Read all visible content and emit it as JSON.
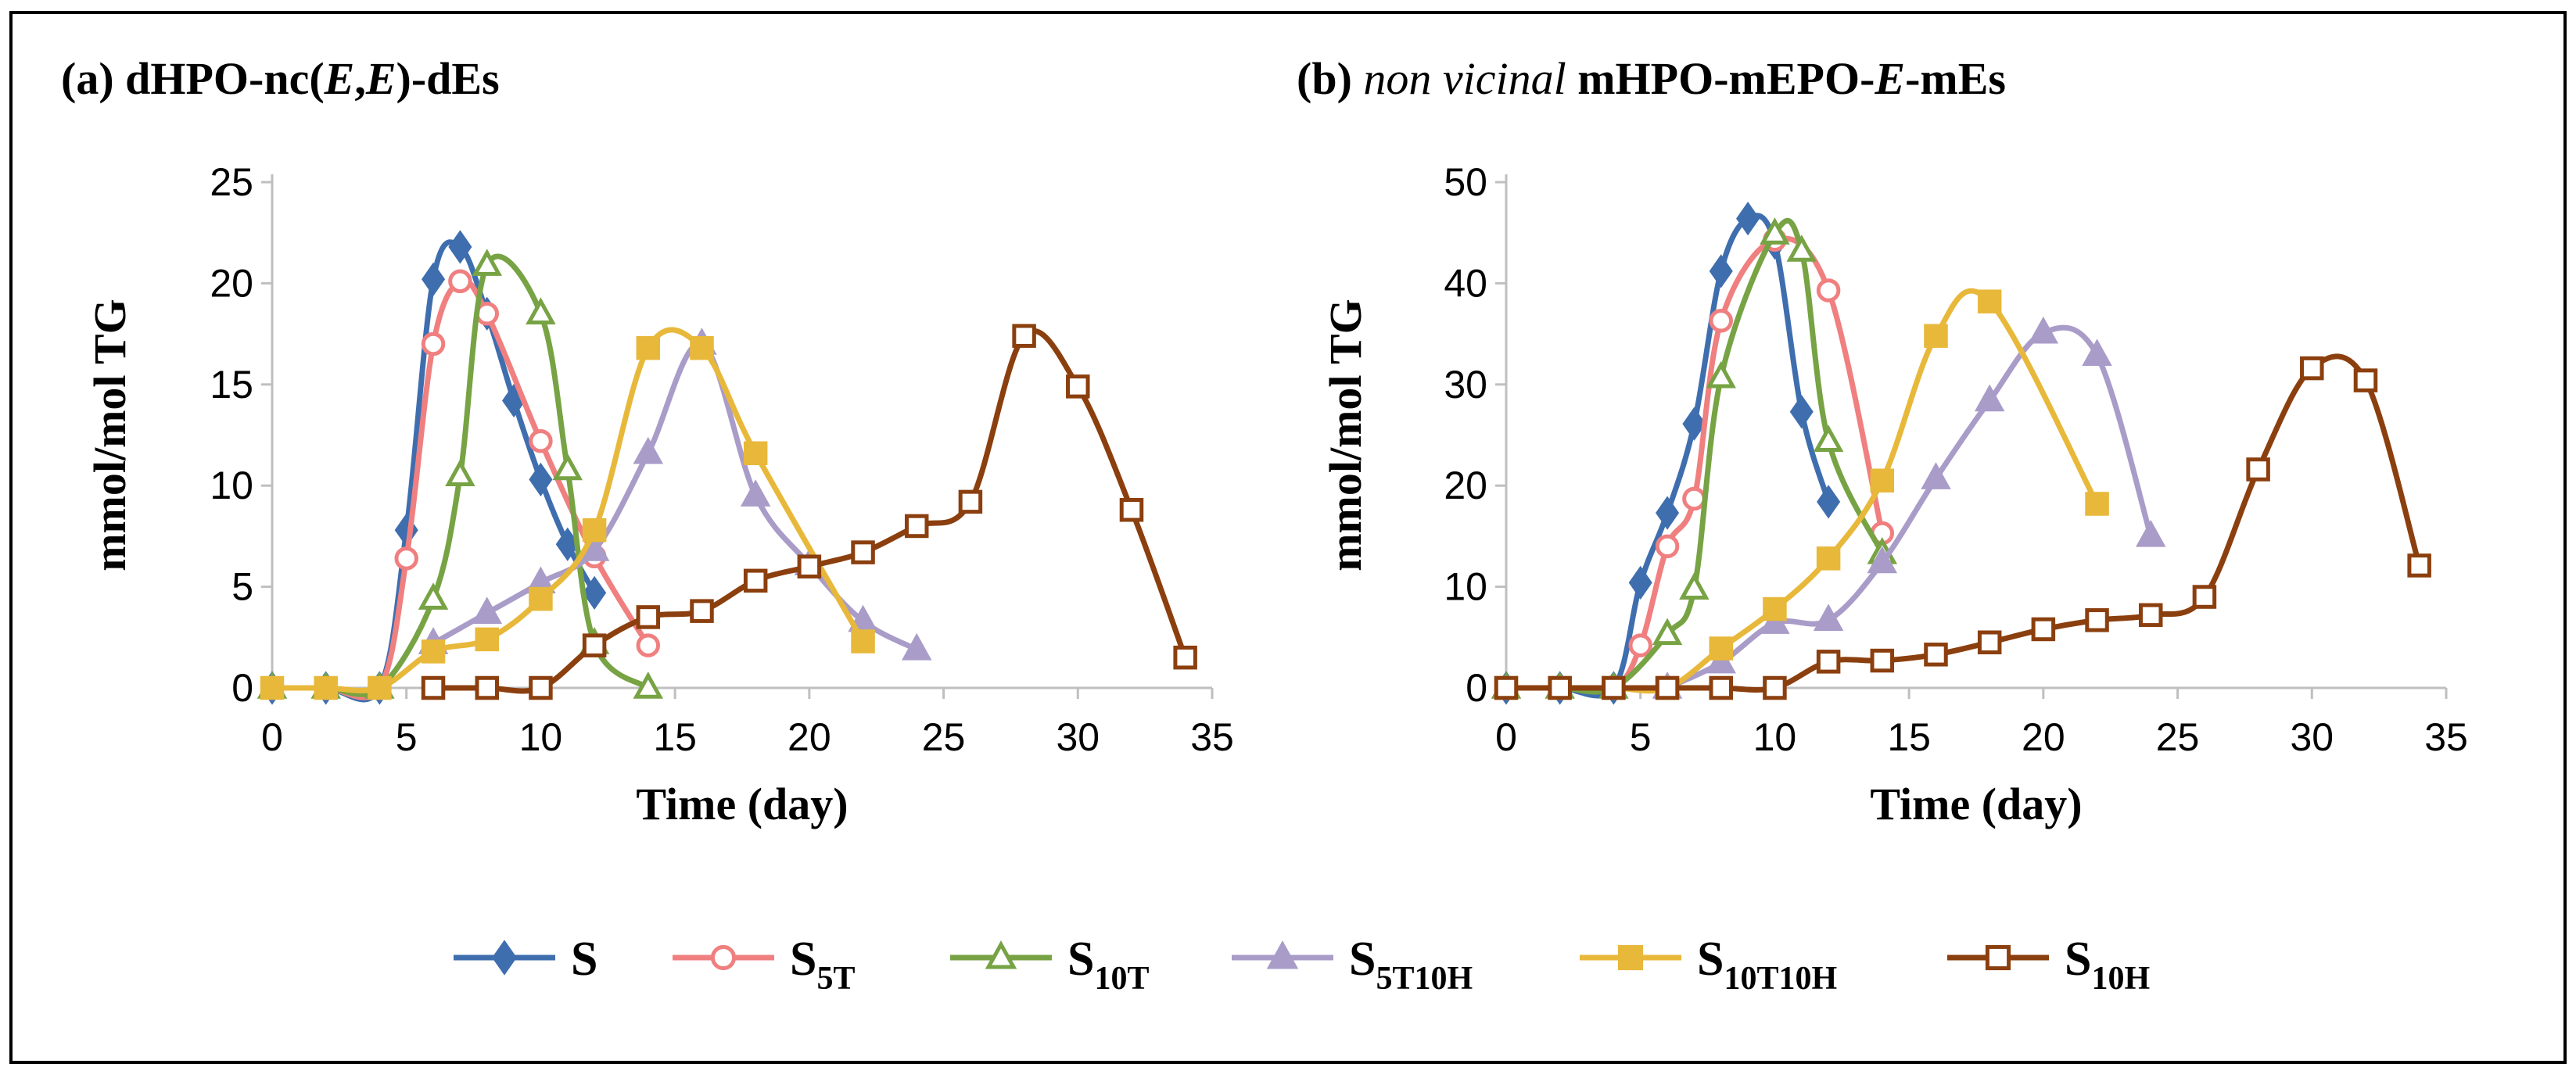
{
  "chart_data": [
    {
      "type": "line",
      "panel": "a",
      "title_parts": [
        {
          "text": "(a) dHPO-nc(",
          "italic": false,
          "bold": true
        },
        {
          "text": "E",
          "italic": true,
          "bold": true
        },
        {
          "text": ",",
          "italic": false,
          "bold": true
        },
        {
          "text": "E",
          "italic": true,
          "bold": true
        },
        {
          "text": ")-dEs",
          "italic": false,
          "bold": true
        }
      ],
      "xlabel": "Time (day)",
      "ylabel": "mmol/mol TG",
      "xlim": [
        0,
        35
      ],
      "ylim": [
        0,
        25
      ],
      "xticks": [
        "0",
        "5",
        "10",
        "15",
        "20",
        "25",
        "30",
        "35"
      ],
      "yticks": [
        "0",
        "5",
        "10",
        "15",
        "20",
        "25"
      ],
      "series": [
        {
          "id": "S",
          "x": [
            0,
            2,
            4,
            5,
            6,
            7,
            8,
            9,
            10,
            11,
            12
          ],
          "y": [
            0,
            0,
            0,
            7.8,
            20.2,
            21.8,
            18.5,
            14.2,
            10.3,
            7.1,
            4.7
          ]
        },
        {
          "id": "S5T",
          "x": [
            0,
            2,
            4,
            5,
            6,
            7,
            8,
            10,
            12,
            14
          ],
          "y": [
            0,
            0,
            0,
            6.4,
            17.0,
            20.1,
            18.5,
            12.2,
            6.5,
            2.1
          ]
        },
        {
          "id": "S10T",
          "x": [
            0,
            2,
            4,
            6,
            7,
            8,
            10,
            11,
            12,
            14
          ],
          "y": [
            0,
            0,
            0,
            4.4,
            10.5,
            20.9,
            18.5,
            10.8,
            2.2,
            0
          ]
        },
        {
          "id": "S5T10H",
          "x": [
            6,
            8,
            10,
            12,
            14,
            16,
            18,
            20,
            22,
            24
          ],
          "y": [
            2.2,
            3.7,
            5.2,
            6.8,
            11.6,
            17.0,
            9.5,
            6.1,
            3.3,
            1.9
          ]
        },
        {
          "id": "S10T10H",
          "x": [
            0,
            2,
            4,
            6,
            8,
            10,
            12,
            14,
            16,
            18,
            22
          ],
          "y": [
            0,
            0,
            0,
            1.8,
            2.4,
            4.4,
            7.8,
            16.8,
            16.8,
            11.6,
            2.3
          ]
        },
        {
          "id": "S10H",
          "x": [
            6,
            8,
            10,
            12,
            14,
            16,
            18,
            20,
            22,
            24,
            26,
            28,
            30,
            32,
            34
          ],
          "y": [
            0,
            0,
            0,
            2.1,
            3.5,
            3.8,
            5.3,
            6.0,
            6.7,
            8.0,
            9.2,
            17.4,
            14.9,
            8.8,
            1.5
          ]
        }
      ]
    },
    {
      "type": "line",
      "panel": "b",
      "title_parts": [
        {
          "text": "(b) ",
          "italic": false,
          "bold": true
        },
        {
          "text": "non vicinal",
          "italic": true,
          "bold": false
        },
        {
          "text": " mHPO-mEPO-",
          "italic": false,
          "bold": true
        },
        {
          "text": "E",
          "italic": true,
          "bold": true
        },
        {
          "text": "-mEs",
          "italic": false,
          "bold": true
        }
      ],
      "xlabel": "Time (day)",
      "ylabel": "mmol/mol TG",
      "xlim": [
        0,
        35
      ],
      "ylim": [
        0,
        50
      ],
      "xticks": [
        "0",
        "5",
        "10",
        "15",
        "20",
        "25",
        "30",
        "35"
      ],
      "yticks": [
        "0",
        "10",
        "20",
        "30",
        "40",
        "50"
      ],
      "series": [
        {
          "id": "S",
          "x": [
            0,
            2,
            4,
            5,
            6,
            7,
            8,
            9,
            10,
            11,
            12
          ],
          "y": [
            0,
            0,
            0,
            10.4,
            17.3,
            26.1,
            41.2,
            46.4,
            44.0,
            27.3,
            18.4
          ]
        },
        {
          "id": "S5T",
          "x": [
            0,
            2,
            4,
            5,
            6,
            7,
            8,
            10,
            12,
            14
          ],
          "y": [
            0,
            0,
            0,
            4.2,
            14.0,
            18.7,
            36.3,
            44.3,
            39.3,
            15.3
          ]
        },
        {
          "id": "S10T",
          "x": [
            0,
            2,
            4,
            6,
            7,
            8,
            10,
            11,
            12,
            14
          ],
          "y": [
            0,
            0,
            0,
            5.3,
            9.8,
            30.7,
            44.9,
            43.2,
            24.4,
            13.3
          ]
        },
        {
          "id": "S5T10H",
          "x": [
            6,
            8,
            10,
            12,
            14,
            16,
            18,
            20,
            22,
            24
          ],
          "y": [
            0,
            2.5,
            6.4,
            6.7,
            12.4,
            20.7,
            28.4,
            35.1,
            32.9,
            15.0
          ]
        },
        {
          "id": "S10T10H",
          "x": [
            0,
            2,
            4,
            6,
            8,
            10,
            12,
            14,
            16,
            18,
            22
          ],
          "y": [
            0,
            0,
            0,
            0,
            3.9,
            7.8,
            12.8,
            20.5,
            34.8,
            38.2,
            18.2
          ]
        },
        {
          "id": "S10H",
          "x": [
            0,
            2,
            4,
            6,
            8,
            10,
            12,
            14,
            16,
            18,
            20,
            22,
            24,
            26,
            28,
            30,
            32,
            34
          ],
          "y": [
            0,
            0,
            0,
            0,
            0,
            0,
            2.6,
            2.7,
            3.3,
            4.5,
            5.8,
            6.7,
            7.2,
            9.0,
            21.6,
            31.6,
            30.4,
            12.1
          ]
        }
      ]
    }
  ],
  "legend": [
    {
      "id": "S",
      "base": "S",
      "sub": "",
      "color": "#3f6eaf",
      "marker": "diamond",
      "filled": true
    },
    {
      "id": "S5T",
      "base": "S",
      "sub": "5T",
      "color": "#f07f80",
      "marker": "circle",
      "filled": false
    },
    {
      "id": "S10T",
      "base": "S",
      "sub": "10T",
      "color": "#77a344",
      "marker": "triangle",
      "filled": false
    },
    {
      "id": "S5T10H",
      "base": "S",
      "sub": "5T10H",
      "color": "#a99cc8",
      "marker": "triangle",
      "filled": true
    },
    {
      "id": "S10T10H",
      "base": "S",
      "sub": "10T10H",
      "color": "#e8b83a",
      "marker": "square",
      "filled": true
    },
    {
      "id": "S10H",
      "base": "S",
      "sub": "10H",
      "color": "#8b3f0e",
      "marker": "square",
      "filled": false
    }
  ]
}
